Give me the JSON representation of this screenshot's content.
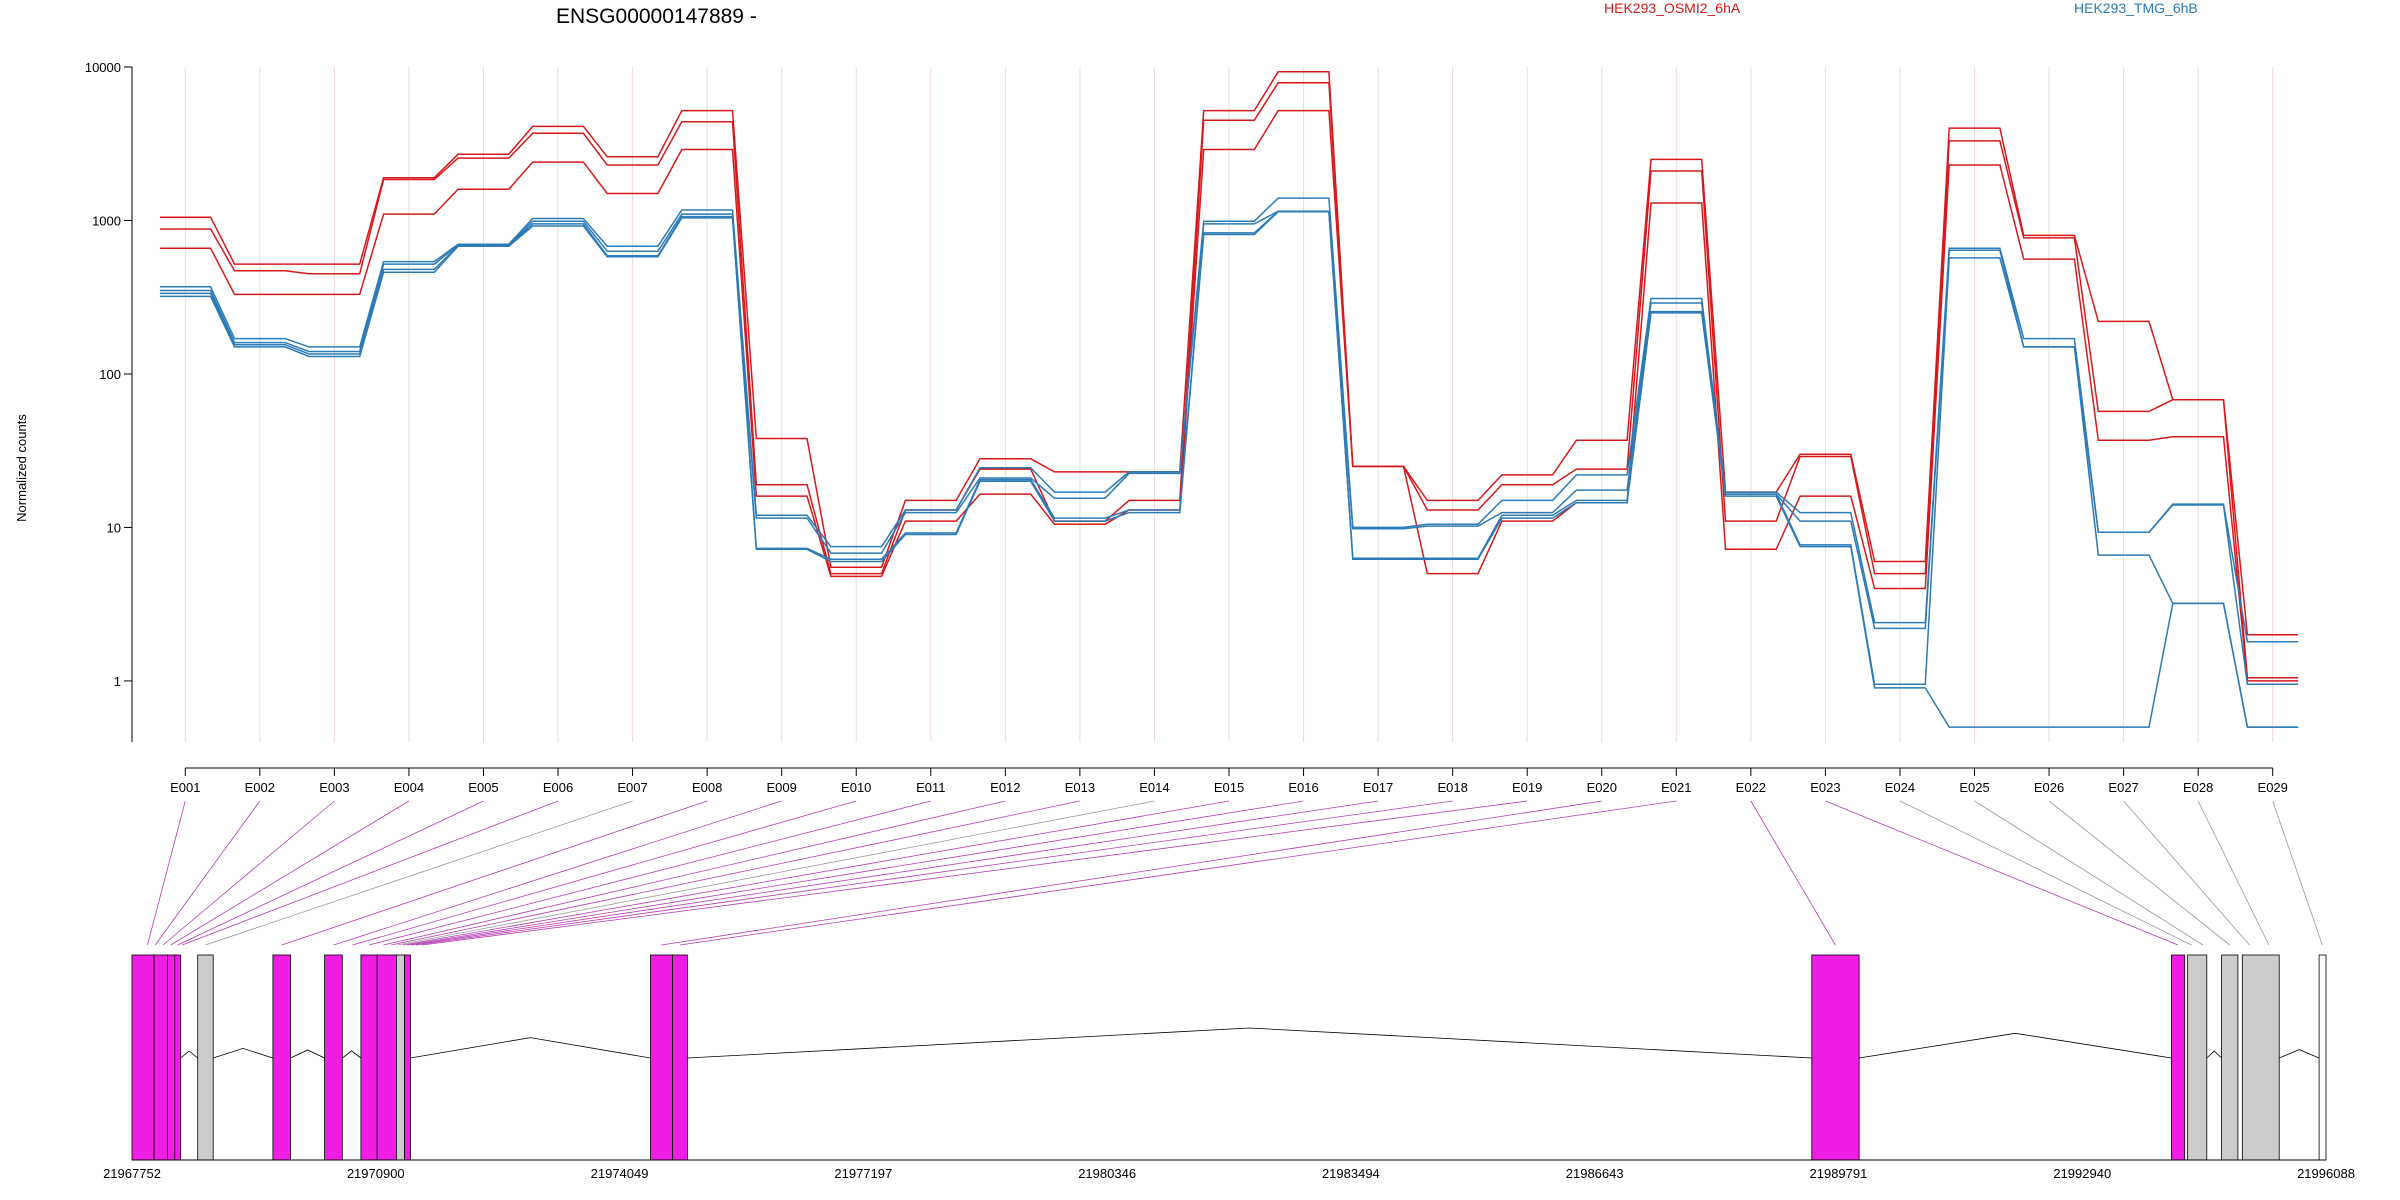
{
  "chart_data": {
    "type": "line",
    "title": "ENSG00000147889 -",
    "ylabel": "Normalized counts",
    "yscale": "log",
    "ylim": [
      0.4,
      10000
    ],
    "y_ticks": [
      "10000",
      "1000",
      "100",
      "10",
      "1"
    ],
    "y_tick_values": [
      10000,
      1000,
      100,
      10,
      1
    ],
    "categories": [
      "E001",
      "E002",
      "E003",
      "E004",
      "E005",
      "E006",
      "E007",
      "E008",
      "E009",
      "E010",
      "E011",
      "E012",
      "E013",
      "E014",
      "E015",
      "E016",
      "E017",
      "E018",
      "E019",
      "E020",
      "E021",
      "E022",
      "E023",
      "E024",
      "E025",
      "E026",
      "E027",
      "E028",
      "E029"
    ],
    "legend": [
      {
        "name": "HEK293_OSMI2_6hA",
        "color": "#d7191c"
      },
      {
        "name": "HEK293_TMG_6hB",
        "color": "#2c7bb6"
      }
    ],
    "series": [
      {
        "name": "HEK293_OSMI2_6hA",
        "color": "#d7191c",
        "values": [
          1050,
          520,
          520,
          1900,
          2700,
          4100,
          2600,
          5200,
          38,
          5.5,
          15,
          28,
          23,
          23,
          5200,
          9300,
          25,
          15,
          22,
          37,
          2500,
          17,
          30,
          6,
          4000,
          800,
          220,
          68,
          2
        ]
      },
      {
        "name": "HEK293_OSMI2_6hA",
        "color": "#d7191c",
        "values": [
          880,
          470,
          450,
          1850,
          2550,
          3700,
          2300,
          4400,
          19,
          5,
          13,
          24,
          11,
          15,
          4500,
          7900,
          25,
          13,
          19,
          24,
          2100,
          11,
          29,
          5,
          3300,
          770,
          57,
          68,
          1.05
        ]
      },
      {
        "name": "HEK293_OSMI2_6hA",
        "color": "#d7191c",
        "values": [
          660,
          330,
          330,
          1100,
          1600,
          2400,
          1500,
          2900,
          16,
          4.8,
          11,
          16.5,
          10.5,
          13,
          2900,
          5200,
          25,
          5,
          11,
          14.5,
          1300,
          7.2,
          16,
          4,
          2300,
          560,
          37,
          39,
          1
        ]
      },
      {
        "name": "HEK293_TMG_6hB",
        "color": "#2c7bb6",
        "values": [
          370,
          170,
          150,
          540,
          700,
          1030,
          680,
          1170,
          12,
          7.5,
          13,
          24.5,
          17,
          23,
          990,
          1400,
          10,
          10.5,
          15,
          22,
          310,
          17,
          12.5,
          2.4,
          660,
          170,
          9.3,
          14.2,
          1.8
        ]
      },
      {
        "name": "HEK293_TMG_6hB",
        "color": "#2c7bb6",
        "values": [
          350,
          160,
          140,
          520,
          690,
          990,
          630,
          1100,
          11.5,
          6.8,
          12.5,
          21,
          15.5,
          22.5,
          950,
          1150,
          9.8,
          10.2,
          12.5,
          17.5,
          290,
          16.5,
          11,
          2.2,
          640,
          150,
          9.3,
          14,
          0.95
        ]
      },
      {
        "name": "HEK293_TMG_6hB",
        "color": "#2c7bb6",
        "values": [
          335,
          155,
          135,
          480,
          685,
          950,
          590,
          1060,
          7.3,
          6.2,
          9.2,
          20.5,
          11.5,
          13,
          830,
          1150,
          6.3,
          6.3,
          12,
          15,
          255,
          16.5,
          7.7,
          0.95,
          570,
          150,
          6.6,
          3.2,
          0.5
        ]
      },
      {
        "name": "HEK293_TMG_6hB",
        "color": "#2c7bb6",
        "values": [
          320,
          150,
          130,
          460,
          680,
          920,
          580,
          1040,
          7.2,
          6,
          9,
          20,
          11,
          12.5,
          810,
          1140,
          6.2,
          6.2,
          11.5,
          14.5,
          250,
          16,
          7.5,
          0.9,
          0.5,
          0.5,
          0.5,
          3.2,
          0.5
        ]
      }
    ],
    "gene_axis": {
      "range": [
        21967752,
        21996088
      ],
      "ticks": [
        "21967752",
        "21970900",
        "21974049",
        "21977197",
        "21980346",
        "21983494",
        "21986643",
        "21989791",
        "21992940",
        "21996088"
      ],
      "tick_values": [
        21967752,
        21970900,
        21974049,
        21977197,
        21980346,
        21983494,
        21986643,
        21989791,
        21992940,
        21996088
      ]
    },
    "exon_blocks": [
      {
        "start": 21967752,
        "end": 21968038,
        "color": "#f01de5"
      },
      {
        "start": 21968038,
        "end": 21968210,
        "color": "#f01de5"
      },
      {
        "start": 21968210,
        "end": 21968305,
        "color": "#f01de5"
      },
      {
        "start": 21968305,
        "end": 21968381,
        "color": "#f01de5"
      },
      {
        "start": 21968600,
        "end": 21968800,
        "color": "#cccccc"
      },
      {
        "start": 21969572,
        "end": 21969801,
        "color": "#f01de5"
      },
      {
        "start": 21970240,
        "end": 21970469,
        "color": "#f01de5"
      },
      {
        "start": 21970708,
        "end": 21970918,
        "color": "#f01de5"
      },
      {
        "start": 21970918,
        "end": 21971167,
        "color": "#f01de5"
      },
      {
        "start": 21971167,
        "end": 21971271,
        "color": "#cccccc"
      },
      {
        "start": 21971271,
        "end": 21971348,
        "color": "#f01de5"
      },
      {
        "start": 21974448,
        "end": 21974734,
        "color": "#f01de5"
      },
      {
        "start": 21974734,
        "end": 21974925,
        "color": "#f01de5"
      },
      {
        "start": 21989447,
        "end": 21990058,
        "color": "#f01de5"
      },
      {
        "start": 21994091,
        "end": 21994263,
        "color": "#f01de5"
      },
      {
        "start": 21994301,
        "end": 21994549,
        "color": "#cccccc"
      },
      {
        "start": 21994740,
        "end": 21994950,
        "color": "#cccccc"
      },
      {
        "start": 21995007,
        "end": 21995484,
        "color": "#cccccc"
      },
      {
        "start": 21995999,
        "end": 21996088,
        "color": "#ffffff"
      }
    ],
    "exon_mapping": [
      {
        "bin": "E001",
        "pos": 21967952,
        "color": "#b53cb3"
      },
      {
        "bin": "E002",
        "pos": 21968052,
        "color": "#b53cb3"
      },
      {
        "bin": "E003",
        "pos": 21968152,
        "color": "#b53cb3"
      },
      {
        "bin": "E004",
        "pos": 21968252,
        "color": "#b53cb3"
      },
      {
        "bin": "E005",
        "pos": 21968343,
        "color": "#b53cb3"
      },
      {
        "bin": "E006",
        "pos": 21968400,
        "color": "#b53cb3"
      },
      {
        "bin": "E007",
        "pos": 21968700,
        "color": "#999999"
      },
      {
        "bin": "E008",
        "pos": 21969687,
        "color": "#b53cb3"
      },
      {
        "bin": "E009",
        "pos": 21970355,
        "color": "#b53cb3"
      },
      {
        "bin": "E010",
        "pos": 21970600,
        "color": "#b53cb3"
      },
      {
        "bin": "E011",
        "pos": 21970813,
        "color": "#b53cb3"
      },
      {
        "bin": "E012",
        "pos": 21971000,
        "color": "#b53cb3"
      },
      {
        "bin": "E013",
        "pos": 21971100,
        "color": "#b53cb3"
      },
      {
        "bin": "E014",
        "pos": 21971180,
        "color": "#999999"
      },
      {
        "bin": "E015",
        "pos": 21971250,
        "color": "#b53cb3"
      },
      {
        "bin": "E016",
        "pos": 21971310,
        "color": "#b53cb3"
      },
      {
        "bin": "E017",
        "pos": 21971360,
        "color": "#b53cb3"
      },
      {
        "bin": "E018",
        "pos": 21971420,
        "color": "#b53cb3"
      },
      {
        "bin": "E019",
        "pos": 21971500,
        "color": "#b53cb3"
      },
      {
        "bin": "E020",
        "pos": 21974590,
        "color": "#b53cb3"
      },
      {
        "bin": "E021",
        "pos": 21974830,
        "color": "#b53cb3"
      },
      {
        "bin": "E022",
        "pos": 21989752,
        "color": "#b53cb3"
      },
      {
        "bin": "E023",
        "pos": 21994177,
        "color": "#b53cb3"
      },
      {
        "bin": "E024",
        "pos": 21994350,
        "color": "#999999"
      },
      {
        "bin": "E025",
        "pos": 21994500,
        "color": "#999999"
      },
      {
        "bin": "E026",
        "pos": 21994845,
        "color": "#999999"
      },
      {
        "bin": "E027",
        "pos": 21995100,
        "color": "#999999"
      },
      {
        "bin": "E028",
        "pos": 21995350,
        "color": "#999999"
      },
      {
        "bin": "E029",
        "pos": 21996040,
        "color": "#999999"
      }
    ],
    "grid": true
  }
}
